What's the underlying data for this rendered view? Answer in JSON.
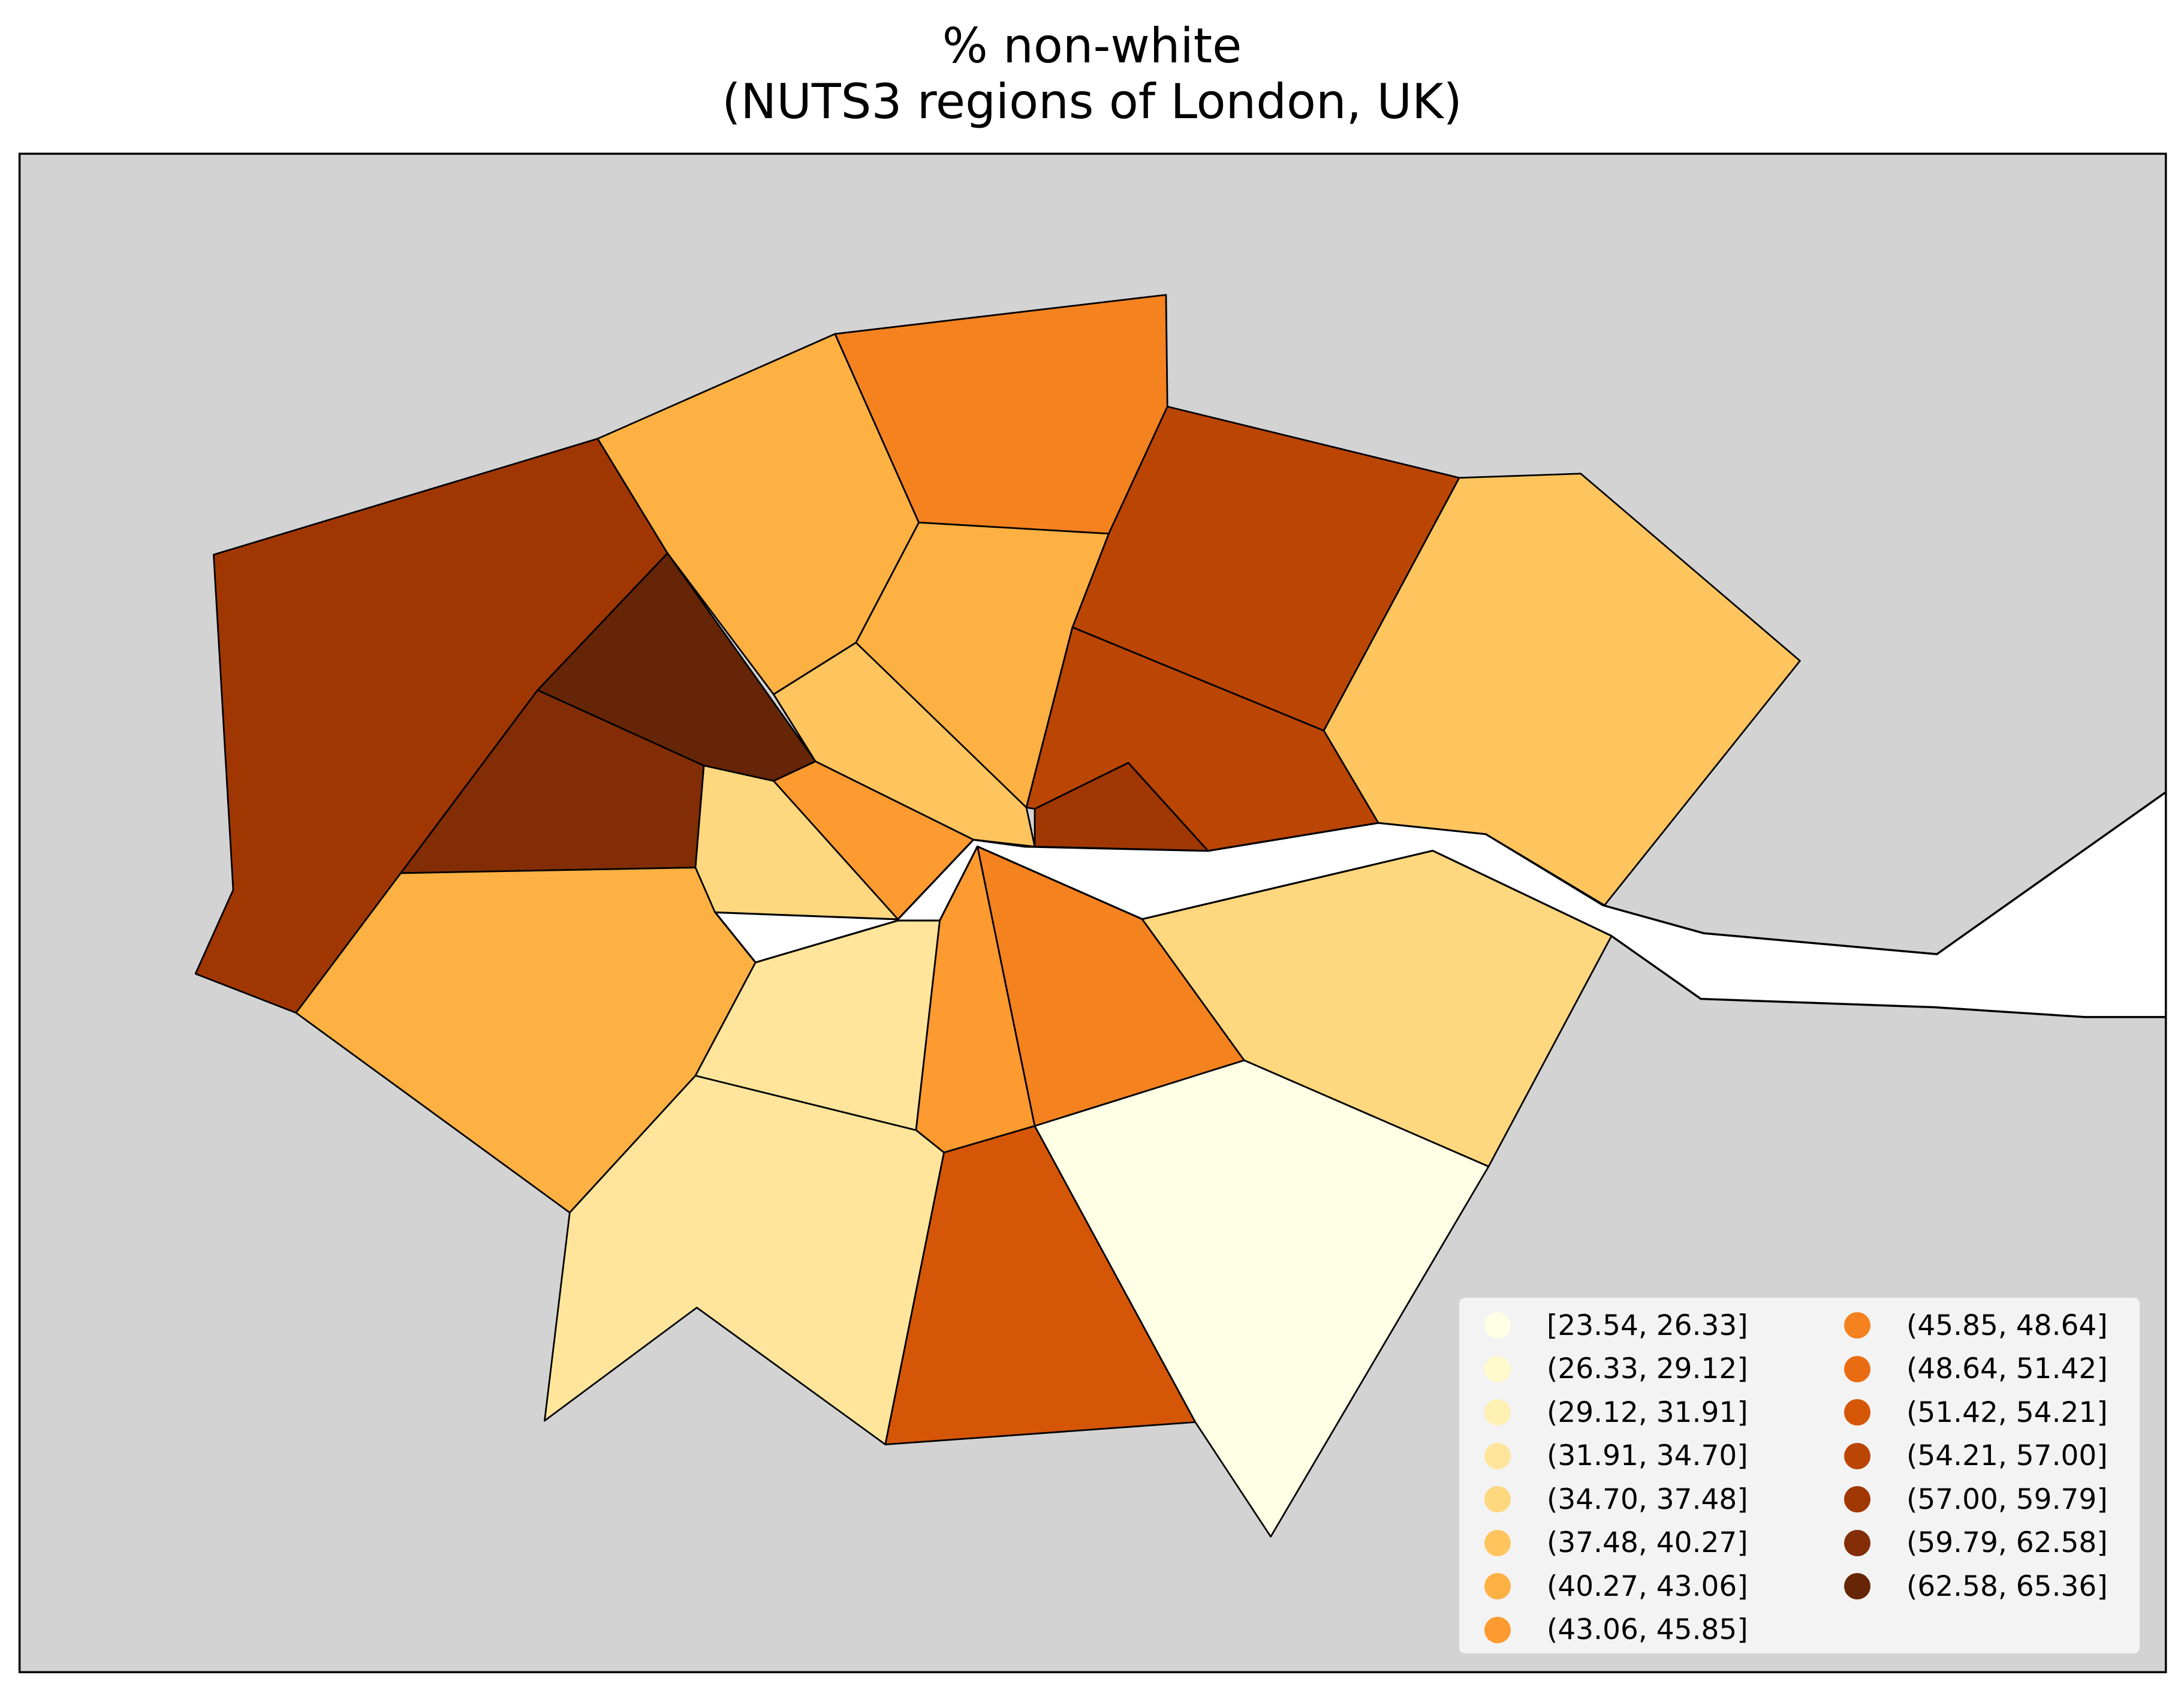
{
  "title": {
    "line1": "% non-white",
    "line2": "(NUTS3 regions of London, UK)"
  },
  "map": {
    "background_color": "#d3d3d3",
    "river_color": "#ffffff",
    "edge_color": "#000000"
  },
  "legend": {
    "placement": "bottom-right",
    "columns": 2,
    "classes": [
      {
        "label": "[23.54, 26.33]",
        "color": "#ffffe5"
      },
      {
        "label": "(26.33, 29.12]",
        "color": "#fff9cc"
      },
      {
        "label": "(29.12, 31.91]",
        "color": "#fff0b4"
      },
      {
        "label": "(31.91, 34.70]",
        "color": "#fee59b"
      },
      {
        "label": "(34.70, 37.48]",
        "color": "#fed77e"
      },
      {
        "label": "(37.48, 40.27]",
        "color": "#fec55f"
      },
      {
        "label": "(40.27, 43.06]",
        "color": "#feb143"
      },
      {
        "label": "(43.06, 45.85]",
        "color": "#fd9a30"
      },
      {
        "label": "(45.85, 48.64]",
        "color": "#f4821f"
      },
      {
        "label": "(48.64, 51.42]",
        "color": "#e96c13"
      },
      {
        "label": "(51.42, 54.21]",
        "color": "#d55607"
      },
      {
        "label": "(54.21, 57.00]",
        "color": "#bb4503"
      },
      {
        "label": "(57.00, 59.79]",
        "color": "#a03703"
      },
      {
        "label": "(59.79, 62.58]",
        "color": "#822d05"
      },
      {
        "label": "(62.58, 65.36]",
        "color": "#662506"
      }
    ]
  },
  "regions": [
    {
      "class": 12
    },
    {
      "class": 6
    },
    {
      "class": 8
    },
    {
      "class": 11
    },
    {
      "class": 5
    },
    {
      "class": 14
    },
    {
      "class": 6
    },
    {
      "class": 5
    },
    {
      "class": 11
    },
    {
      "class": 12
    },
    {
      "class": 4
    },
    {
      "class": 7
    },
    {
      "class": 13
    },
    {
      "class": 6
    },
    {
      "class": 3
    },
    {
      "class": 7
    },
    {
      "class": 8
    },
    {
      "class": 4
    },
    {
      "class": 3
    },
    {
      "class": 10
    },
    {
      "class": 0
    }
  ]
}
